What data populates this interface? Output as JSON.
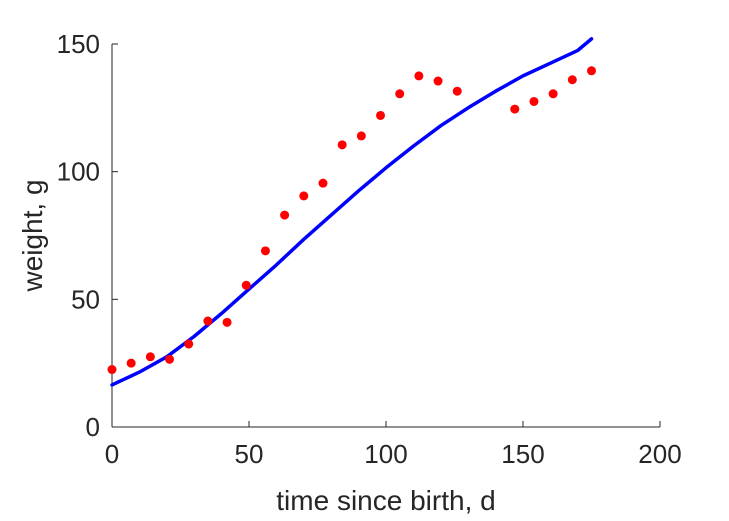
{
  "chart_data": {
    "type": "scatter",
    "title": "",
    "xlabel": "time since birth, d",
    "ylabel": "weight, g",
    "xlim": [
      0,
      200
    ],
    "ylim": [
      0,
      150
    ],
    "x_ticks": [
      0,
      50,
      100,
      150,
      200
    ],
    "y_ticks": [
      0,
      50,
      100,
      150
    ],
    "grid": false,
    "box": "left-bottom",
    "series": [
      {
        "kind": "scatter",
        "color": "#ff0000",
        "x": [
          0,
          7,
          14,
          21,
          28,
          35,
          42,
          49,
          56,
          63,
          70,
          77,
          84,
          91,
          98,
          105,
          112,
          119,
          126,
          147,
          154,
          161,
          168,
          175
        ],
        "y": [
          22.5,
          25.0,
          27.5,
          26.5,
          32.5,
          41.5,
          41.0,
          55.5,
          69.0,
          83.0,
          90.5,
          95.5,
          110.5,
          114.0,
          122.0,
          130.5,
          137.5,
          135.5,
          131.5,
          124.5,
          127.5,
          130.5,
          136.0,
          139.5
        ]
      },
      {
        "kind": "line",
        "color": "#0000ff",
        "x": [
          0,
          10,
          20,
          30,
          40,
          50,
          60,
          70,
          80,
          90,
          100,
          110,
          120,
          130,
          140,
          150,
          160,
          170,
          175
        ],
        "y": [
          16.5,
          21.5,
          27.5,
          35.5,
          44.5,
          54.0,
          63.5,
          73.5,
          83.0,
          92.5,
          101.5,
          110.0,
          118.0,
          125.0,
          131.5,
          137.5,
          142.5,
          147.5,
          152.0
        ]
      }
    ]
  }
}
